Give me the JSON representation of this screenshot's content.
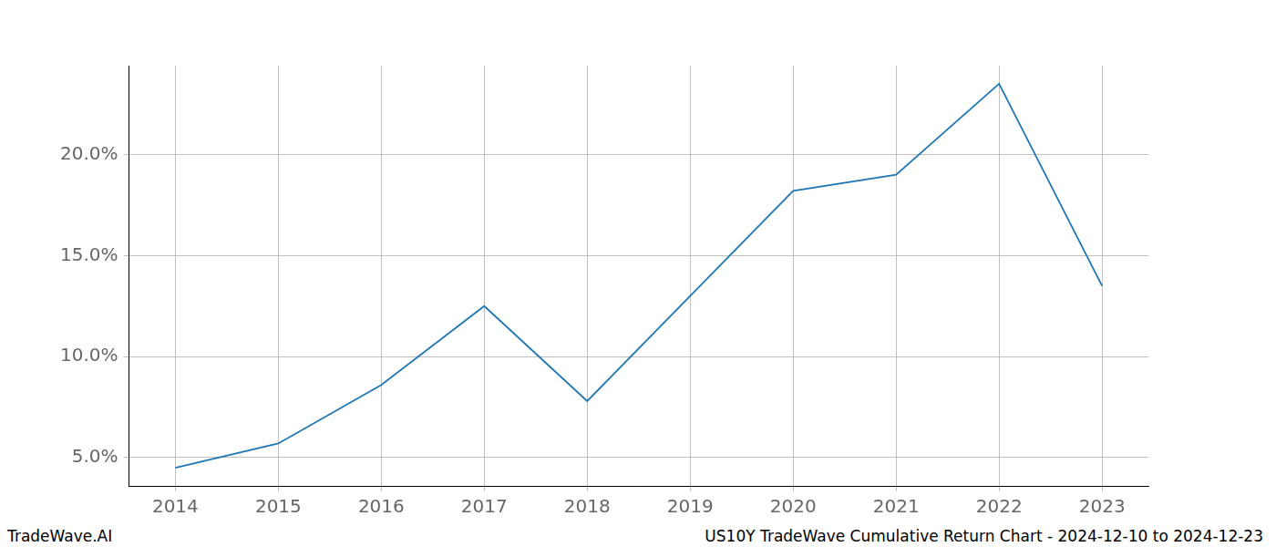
{
  "chart_data": {
    "type": "line",
    "x": [
      2014,
      2015,
      2016,
      2017,
      2018,
      2019,
      2020,
      2021,
      2022,
      2023
    ],
    "values": [
      4.5,
      5.7,
      8.6,
      12.5,
      7.8,
      13.0,
      18.2,
      19.0,
      23.5,
      13.5
    ],
    "color": "#1f77b4",
    "xlim": [
      2013.55,
      2023.45
    ],
    "xticks": [
      2014,
      2015,
      2016,
      2017,
      2018,
      2019,
      2020,
      2021,
      2022,
      2023
    ],
    "ylim": [
      3.6,
      24.4
    ],
    "yticks": [
      {
        "value": 5,
        "label": "5.0%"
      },
      {
        "value": 10,
        "label": "10.0%"
      },
      {
        "value": 15,
        "label": "15.0%"
      },
      {
        "value": 20,
        "label": "20.0%"
      }
    ],
    "grid": true,
    "annotations": [
      "TradeWave.AI",
      "US10Y TradeWave Cumulative Return Chart - 2024-12-10 to 2024-12-23"
    ]
  }
}
